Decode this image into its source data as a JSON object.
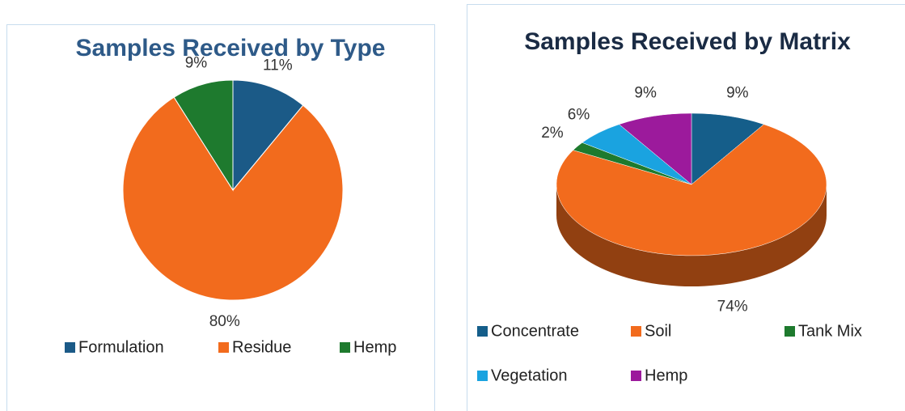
{
  "chart_data": [
    {
      "type": "pie",
      "title": "Samples Received by Type",
      "categories": [
        "Formulation",
        "Residue",
        "Hemp"
      ],
      "values": [
        11,
        80,
        9
      ],
      "value_labels": [
        "11%",
        "80%",
        "9%"
      ],
      "colors": [
        "#1b5a87",
        "#f26b1d",
        "#1e7a2e"
      ],
      "legend": "bottom"
    },
    {
      "type": "pie3d",
      "title": "Samples Received by Matrix",
      "categories": [
        "Concentrate",
        "Soil",
        "Tank Mix",
        "Vegetation",
        "Hemp"
      ],
      "values": [
        9,
        74,
        2,
        6,
        9
      ],
      "value_labels": [
        "9%",
        "74%",
        "2%",
        "6%",
        "9%"
      ],
      "colors": [
        "#155e8a",
        "#f26b1d",
        "#1e7a2e",
        "#1aa3e0",
        "#9c1a9c"
      ],
      "legend": "bottom"
    }
  ]
}
